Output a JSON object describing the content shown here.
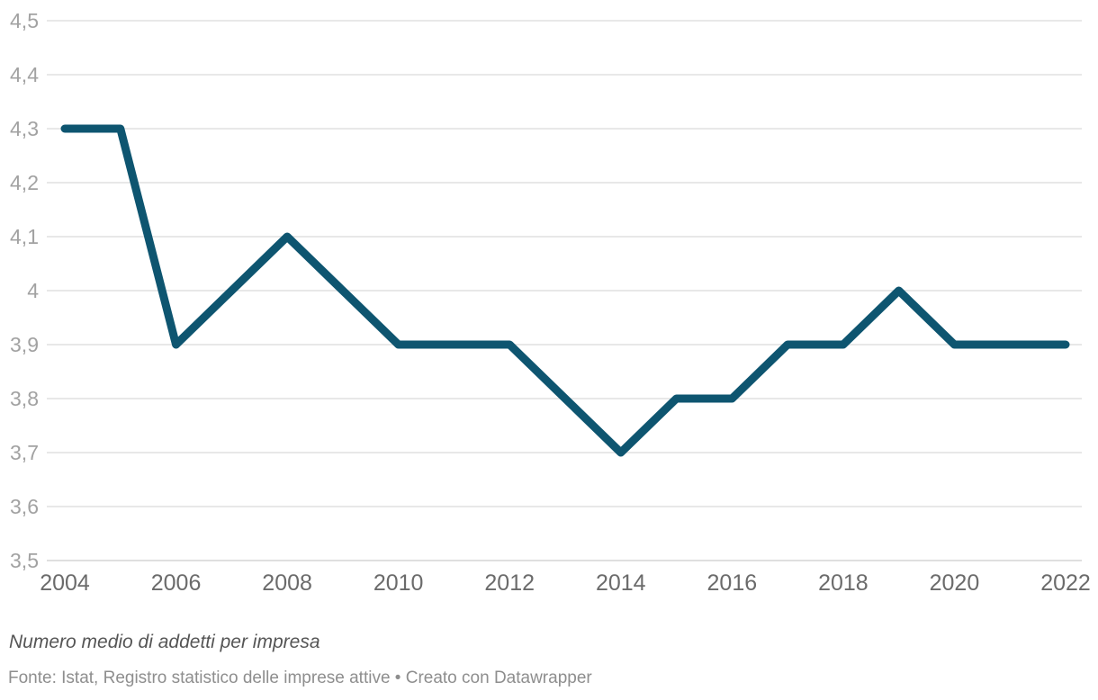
{
  "chart_data": {
    "type": "line",
    "title": "",
    "xlabel": "",
    "ylabel": "",
    "x": [
      2004,
      2005,
      2006,
      2007,
      2008,
      2009,
      2010,
      2011,
      2012,
      2013,
      2014,
      2015,
      2016,
      2017,
      2018,
      2019,
      2020,
      2021,
      2022
    ],
    "series": [
      {
        "name": "Numero medio di addetti per impresa",
        "values": [
          4.3,
          4.3,
          3.9,
          4.0,
          4.1,
          4.0,
          3.9,
          3.9,
          3.9,
          3.8,
          3.7,
          3.8,
          3.8,
          3.9,
          3.9,
          4.0,
          3.9,
          3.9,
          3.9
        ]
      }
    ],
    "xlim": [
      2004,
      2022
    ],
    "ylim": [
      3.5,
      4.5
    ],
    "y_ticks": [
      {
        "value": 4.5,
        "label": "4,5"
      },
      {
        "value": 4.4,
        "label": "4,4"
      },
      {
        "value": 4.3,
        "label": "4,3"
      },
      {
        "value": 4.2,
        "label": "4,2"
      },
      {
        "value": 4.1,
        "label": "4,1"
      },
      {
        "value": 4.0,
        "label": "4"
      },
      {
        "value": 3.9,
        "label": "3,9"
      },
      {
        "value": 3.8,
        "label": "3,8"
      },
      {
        "value": 3.7,
        "label": "3,7"
      },
      {
        "value": 3.6,
        "label": "3,6"
      },
      {
        "value": 3.5,
        "label": "3,5"
      }
    ],
    "x_ticks": [
      {
        "value": 2004,
        "label": "2004"
      },
      {
        "value": 2006,
        "label": "2006"
      },
      {
        "value": 2008,
        "label": "2008"
      },
      {
        "value": 2010,
        "label": "2010"
      },
      {
        "value": 2012,
        "label": "2012"
      },
      {
        "value": 2014,
        "label": "2014"
      },
      {
        "value": 2016,
        "label": "2016"
      },
      {
        "value": 2018,
        "label": "2018"
      },
      {
        "value": 2020,
        "label": "2020"
      },
      {
        "value": 2022,
        "label": "2022"
      }
    ],
    "grid": "horizontal",
    "legend": "none"
  },
  "footer": {
    "note": "Numero medio di addetti per impresa",
    "source": "Fonte: Istat, Registro statistico delle imprese attive • Creato con Datawrapper"
  },
  "colors": {
    "background": "#ffffff",
    "line": "#0e5570",
    "grid": "#e8e8e8",
    "baseline": "#dfdfdf",
    "y_label": "#a2a2a2",
    "x_label": "#6b6b6b",
    "note": "#555555",
    "source": "#8e8e8e"
  }
}
